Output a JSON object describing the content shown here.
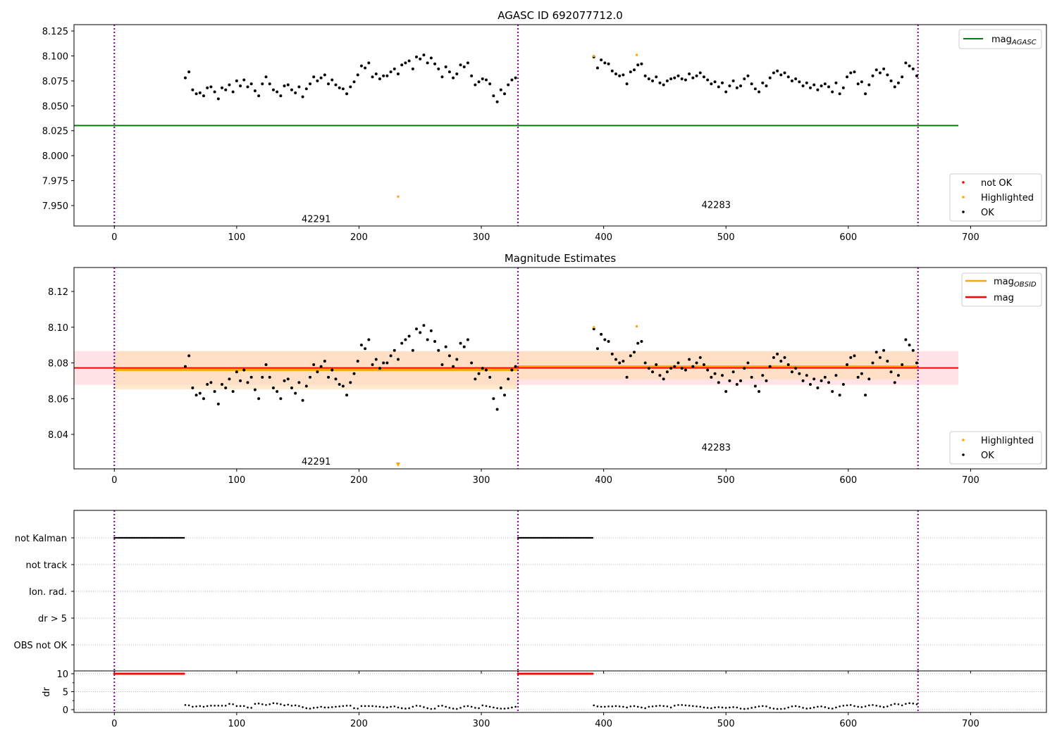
{
  "chart_data": [
    {
      "type": "scatter",
      "title": "AGASC ID 692077712.0",
      "xlim": [
        -33,
        762
      ],
      "ylim": [
        7.9295,
        8.1314
      ],
      "xticks": [
        0,
        100,
        200,
        300,
        400,
        500,
        600,
        700
      ],
      "yticks": [
        "8.125",
        "8.100",
        "8.075",
        "8.050",
        "8.025",
        "8.000",
        "7.975",
        "7.950"
      ],
      "mag_agasc": 8.0302,
      "mag_agasc_xrange": [
        -33,
        690
      ],
      "obsid_boundaries": [
        0,
        330,
        657
      ],
      "obsid_labels": [
        {
          "text": "42291",
          "x": 165,
          "y": 7.937
        },
        {
          "text": "42283",
          "x": 492,
          "y": 7.951
        }
      ],
      "highlighted": [
        {
          "x": 232,
          "y": 7.959
        },
        {
          "x": 392,
          "y": 8.1
        },
        {
          "x": 427,
          "y": 8.101
        }
      ],
      "legend_top": {
        "label": "mag",
        "sub": "AGASC",
        "color": "#008000",
        "placement": "upper-right"
      },
      "legend_bottom": {
        "placement": "lower-right",
        "items": [
          {
            "label": "not OK",
            "color": "#ff0000"
          },
          {
            "label": "Highlighted",
            "color": "#ffa500"
          },
          {
            "label": "OK",
            "color": "#000000"
          }
        ]
      }
    },
    {
      "type": "scatter",
      "title": "Magnitude Estimates",
      "xlim": [
        -33,
        762
      ],
      "ylim": [
        8.0207,
        8.1334
      ],
      "xticks": [
        0,
        100,
        200,
        300,
        400,
        500,
        600,
        700
      ],
      "yticks": [
        "8.12",
        "8.10",
        "8.08",
        "8.06",
        "8.04"
      ],
      "mag": 8.0772,
      "mag_band": [
        8.0677,
        8.0866
      ],
      "mag_xrange": [
        -33,
        690
      ],
      "obsid_mags": [
        {
          "x0": 0,
          "x1": 330,
          "mag": 8.0761,
          "band": [
            8.0652,
            8.0866
          ]
        },
        {
          "x0": 330,
          "x1": 657,
          "mag": 8.078,
          "band": [
            8.0707,
            8.0866
          ]
        }
      ],
      "obsid_labels": [
        {
          "text": "42291",
          "x": 165,
          "y": 8.025
        },
        {
          "text": "42283",
          "x": 492,
          "y": 8.033
        }
      ],
      "highlighted": [
        {
          "x": 232,
          "y": 8.0215,
          "clipped": true
        },
        {
          "x": 392,
          "y": 8.1
        },
        {
          "x": 427,
          "y": 8.1005
        }
      ],
      "legend_top": {
        "placement": "upper-right",
        "items": [
          {
            "label": "mag",
            "sub": "OBSID",
            "color": "#ffa500"
          },
          {
            "label": "mag",
            "sub": "",
            "color": "#ff0000"
          }
        ]
      },
      "legend_bottom": {
        "placement": "lower-right",
        "items": [
          {
            "label": "Highlighted",
            "color": "#ffa500"
          },
          {
            "label": "OK",
            "color": "#000000"
          }
        ]
      }
    },
    {
      "type": "scatter",
      "title": "",
      "categories": [
        "not Kalman",
        "not track",
        "Ion. rad.",
        "dr > 5",
        "OBS not OK"
      ],
      "flag_ranges": {
        "not Kalman": [
          [
            0,
            57
          ],
          [
            330,
            391
          ]
        ]
      }
    },
    {
      "type": "scatter",
      "ylabel": "dr",
      "ylim": [
        -0.78,
        10.78
      ],
      "yticks": [
        "10",
        "5",
        "0"
      ],
      "xticks": [
        0,
        100,
        200,
        300,
        400,
        500,
        600,
        700
      ],
      "dr_not_ok_value": 10,
      "dr_not_ok_ranges": [
        [
          0,
          57
        ],
        [
          330,
          391
        ]
      ]
    }
  ],
  "series": {
    "segments": [
      {
        "x_start": 58,
        "x_step": 3,
        "mag": [
          8.078,
          8.084,
          8.066,
          8.062,
          8.063,
          8.06,
          8.068,
          8.069,
          8.064,
          8.057,
          8.068,
          8.066,
          8.071,
          8.064,
          8.075,
          8.07,
          8.076,
          8.069,
          8.072,
          8.065,
          8.06,
          8.072,
          8.079,
          8.072,
          8.066,
          8.064,
          8.06,
          8.07,
          8.071,
          8.066,
          8.063,
          8.069,
          8.059,
          8.067,
          8.072,
          8.079,
          8.075,
          8.078,
          8.081,
          8.072,
          8.076,
          8.071,
          8.068,
          8.067,
          8.062,
          8.069,
          8.074,
          8.081,
          8.09,
          8.088,
          8.093,
          8.079,
          8.082,
          8.077,
          8.08,
          8.08,
          8.084,
          8.087,
          8.082,
          8.091,
          8.093,
          8.095,
          8.087,
          8.099,
          8.097,
          8.101,
          8.093,
          8.098,
          8.092,
          8.087,
          8.079,
          8.089,
          8.084,
          8.078,
          8.082,
          8.091,
          8.089,
          8.093,
          8.08,
          8.071,
          8.074,
          8.077,
          8.076,
          8.072,
          8.06,
          8.054,
          8.066,
          8.062,
          8.071,
          8.076,
          8.078
        ],
        "dr": [
          1.3,
          1.2,
          0.8,
          0.9,
          1.0,
          0.8,
          1.0,
          1.1,
          1.1,
          1.1,
          1.1,
          1.1,
          1.6,
          1.5,
          1.0,
          1.0,
          1.0,
          0.6,
          0.5,
          1.6,
          1.7,
          1.5,
          1.3,
          1.5,
          1.8,
          1.7,
          1.5,
          1.2,
          1.4,
          1.1,
          1.2,
          1.0,
          0.7,
          0.4,
          0.3,
          0.5,
          0.6,
          0.8,
          0.6,
          0.6,
          0.7,
          0.8,
          0.9,
          1.0,
          1.1,
          1.1,
          0.4,
          0.3,
          1.0,
          1.0,
          1.0,
          1.0,
          0.9,
          0.8,
          0.7,
          0.6,
          0.8,
          0.9,
          0.6,
          0.4,
          0.3,
          0.4,
          0.8,
          1.1,
          1.0,
          0.7,
          0.4,
          0.2,
          0.3,
          1.0,
          1.1,
          0.8,
          0.5,
          0.3,
          0.2,
          0.5,
          0.9,
          1.0,
          0.8,
          0.5,
          0.4,
          1.2,
          1.0,
          0.8,
          0.6,
          0.4,
          0.3,
          0.3,
          0.4,
          0.6,
          0.8
        ]
      },
      {
        "x_start": 392,
        "x_step": 3,
        "mag": [
          8.099,
          8.088,
          8.096,
          8.093,
          8.092,
          8.085,
          8.082,
          8.08,
          8.081,
          8.072,
          8.084,
          8.086,
          8.091,
          8.092,
          8.08,
          8.077,
          8.075,
          8.079,
          8.073,
          8.071,
          8.075,
          8.077,
          8.078,
          8.08,
          8.077,
          8.076,
          8.082,
          8.078,
          8.08,
          8.083,
          8.079,
          8.076,
          8.072,
          8.074,
          8.069,
          8.073,
          8.064,
          8.07,
          8.075,
          8.068,
          8.07,
          8.077,
          8.08,
          8.072,
          8.067,
          8.064,
          8.073,
          8.07,
          8.078,
          8.083,
          8.085,
          8.081,
          8.083,
          8.079,
          8.075,
          8.077,
          8.074,
          8.07,
          8.073,
          8.068,
          8.071,
          8.066,
          8.07,
          8.072,
          8.069,
          8.064,
          8.073,
          8.062,
          8.068,
          8.079,
          8.083,
          8.084,
          8.072,
          8.074,
          8.062,
          8.071,
          8.08,
          8.086,
          8.083,
          8.087,
          8.081,
          8.075,
          8.069,
          8.073,
          8.079,
          8.093,
          8.09,
          8.087,
          8.08
        ],
        "dr": [
          1.2,
          0.9,
          0.8,
          0.8,
          0.9,
          0.9,
          1.0,
          0.9,
          0.8,
          0.6,
          0.9,
          1.0,
          0.8,
          0.6,
          0.4,
          0.8,
          0.9,
          1.0,
          1.1,
          1.0,
          0.9,
          0.6,
          1.1,
          1.3,
          1.3,
          1.2,
          1.1,
          1.0,
          0.9,
          0.8,
          0.6,
          0.5,
          0.4,
          0.6,
          0.7,
          0.6,
          0.5,
          0.6,
          0.7,
          0.6,
          0.3,
          0.2,
          0.3,
          0.5,
          0.7,
          0.9,
          1.0,
          0.9,
          0.5,
          0.3,
          0.2,
          0.2,
          0.3,
          0.6,
          0.9,
          1.0,
          0.8,
          0.5,
          0.3,
          0.4,
          0.6,
          0.8,
          0.9,
          0.7,
          0.4,
          0.3,
          0.6,
          0.9,
          1.1,
          1.2,
          1.3,
          1.0,
          0.8,
          0.7,
          0.9,
          1.2,
          1.3,
          1.1,
          0.9,
          0.7,
          0.9,
          1.3,
          1.6,
          1.5,
          1.2,
          1.6,
          1.8,
          1.7,
          1.5
        ]
      }
    ]
  },
  "colors": {
    "ok": "#000000",
    "not_ok": "#ff0000",
    "highlighted": "#ffa500",
    "boundary": "#800080",
    "agasc": "#008000",
    "mag": "#ff0000",
    "obsid": "#ffa500",
    "mag_band": "#ffc0c8",
    "obsid_band": "#ffdcb0"
  }
}
